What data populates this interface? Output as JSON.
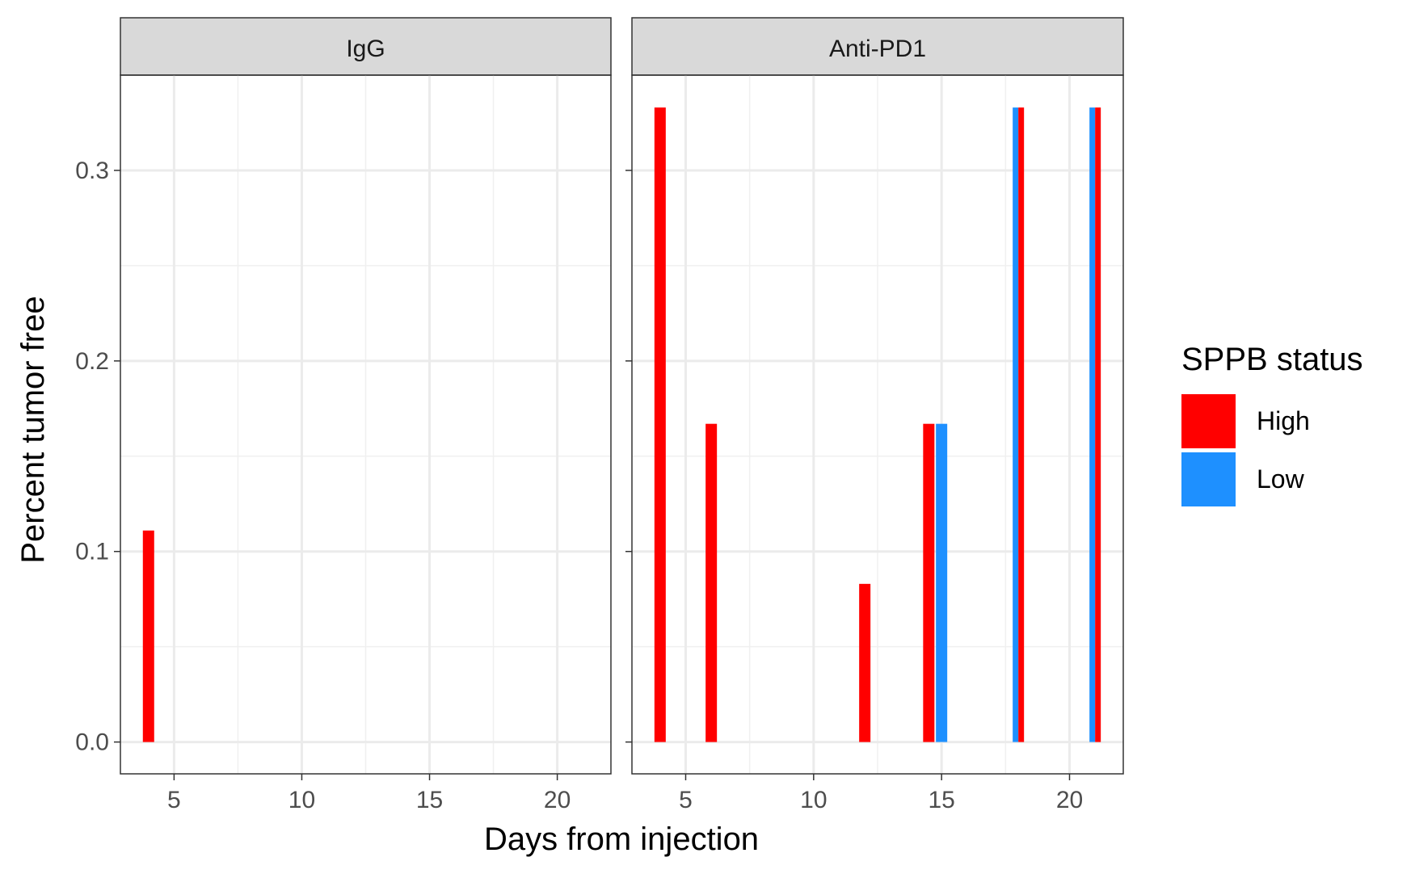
{
  "chart_data": {
    "type": "bar",
    "xlabel": "Days from injection",
    "ylabel": "Percent tumor free",
    "xlim": [
      2.9,
      22.1
    ],
    "ylim": [
      -0.0167,
      0.35
    ],
    "x_ticks": [
      5,
      10,
      15,
      20
    ],
    "y_ticks": [
      0.0,
      0.1,
      0.2,
      0.3
    ],
    "y_tick_labels": [
      "0.0",
      "0.1",
      "0.2",
      "0.3"
    ],
    "grid": true,
    "legend": {
      "title": "SPPB status",
      "position": "right",
      "entries": [
        {
          "name": "High",
          "color": "#FF0000"
        },
        {
          "name": "Low",
          "color": "#1E90FF"
        }
      ]
    },
    "panels": [
      {
        "name": "IgG",
        "bars": [
          {
            "x": 4,
            "y": 0.111,
            "group": "High"
          }
        ]
      },
      {
        "name": "Anti-PD1",
        "bars": [
          {
            "x": 4,
            "y": 0.333,
            "group": "High"
          },
          {
            "x": 6,
            "y": 0.167,
            "group": "High"
          },
          {
            "x": 12,
            "y": 0.083,
            "group": "High"
          },
          {
            "x": 14.5,
            "y": 0.167,
            "group": "High"
          },
          {
            "x": 15,
            "y": 0.167,
            "group": "Low"
          },
          {
            "x": 18,
            "y": 0.333,
            "group": "Low"
          },
          {
            "x": 18,
            "y": 0.333,
            "group": "High"
          },
          {
            "x": 21,
            "y": 0.333,
            "group": "Low"
          },
          {
            "x": 21,
            "y": 0.333,
            "group": "High"
          }
        ]
      }
    ]
  }
}
